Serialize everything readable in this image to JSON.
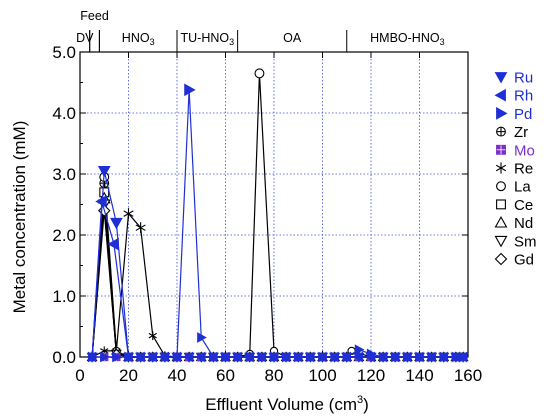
{
  "chart_data": {
    "type": "line",
    "xlabel": "Effluent Volume (cm",
    "xlabel_sup": "3",
    "xlabel_end": ")",
    "ylabel": "Metal concentration (mM)",
    "xlim": [
      0,
      160
    ],
    "ylim": [
      0,
      5.0
    ],
    "xticks": [
      0,
      20,
      40,
      60,
      80,
      100,
      120,
      140,
      160
    ],
    "yticks": [
      0.0,
      1.0,
      2.0,
      3.0,
      4.0,
      5.0
    ],
    "ytick_labels": [
      "0.0",
      "1.0",
      "2.0",
      "3.0",
      "4.0",
      "5.0"
    ],
    "grid": true,
    "legend_position": "right",
    "phases": [
      {
        "label": "DV",
        "start": 0,
        "end": 4
      },
      {
        "label": "Feed",
        "start": 4,
        "end": 8
      },
      {
        "label": "HNO",
        "sub": "3",
        "start": 8,
        "end": 40
      },
      {
        "label": "TU-HNO",
        "sub": "3",
        "start": 40,
        "end": 65
      },
      {
        "label": "OA",
        "start": 65,
        "end": 110
      },
      {
        "label": "HMBO-HNO",
        "sub": "3",
        "start": 110,
        "end": 160
      }
    ],
    "series": [
      {
        "name": "Ru",
        "color": "#1f2fd6",
        "marker": "triangle-down-filled",
        "x": [
          5,
          10,
          15,
          20,
          25,
          30,
          35,
          40,
          45,
          50,
          55,
          60,
          65,
          70,
          75,
          80,
          85,
          90,
          95,
          100,
          105,
          110,
          115,
          120,
          125,
          130,
          135,
          140,
          145,
          150,
          155,
          158
        ],
        "y": [
          0,
          3.05,
          2.2,
          0,
          0,
          0,
          0,
          0,
          0,
          0,
          0,
          0,
          0,
          0,
          0,
          0,
          0,
          0,
          0,
          0,
          0,
          0,
          0,
          0,
          0,
          0,
          0,
          0,
          0,
          0,
          0,
          0
        ]
      },
      {
        "name": "Rh",
        "color": "#1f2fd6",
        "marker": "triangle-left-filled",
        "x": [
          5,
          9,
          14,
          20,
          25,
          30,
          35,
          40,
          45,
          50,
          55,
          60,
          65,
          70,
          75,
          80,
          85,
          90,
          95,
          100,
          105,
          110,
          115,
          120,
          125,
          130,
          135,
          140,
          145,
          150,
          155,
          158
        ],
        "y": [
          0,
          2.55,
          1.85,
          0,
          0,
          0,
          0,
          0,
          0,
          0,
          0,
          0,
          0,
          0,
          0,
          0,
          0,
          0,
          0,
          0,
          0,
          0,
          0,
          0,
          0,
          0,
          0,
          0,
          0,
          0,
          0,
          0
        ]
      },
      {
        "name": "Pd",
        "color": "#1f2fd6",
        "marker": "triangle-right-filled",
        "x": [
          5,
          10,
          15,
          20,
          25,
          30,
          35,
          40,
          45,
          50,
          55,
          60,
          65,
          70,
          75,
          80,
          85,
          90,
          95,
          100,
          105,
          110,
          115,
          120,
          125,
          130,
          135,
          140,
          145,
          150,
          155,
          158
        ],
        "y": [
          0,
          0,
          0,
          0,
          0,
          0,
          0,
          0,
          4.38,
          0.32,
          0,
          0,
          0,
          0,
          0,
          0,
          0,
          0,
          0,
          0,
          0,
          0,
          0.12,
          0.05,
          0,
          0,
          0,
          0,
          0,
          0,
          0,
          0
        ]
      },
      {
        "name": "Zr",
        "color": "#000000",
        "marker": "circle-plus",
        "x": [
          5,
          10,
          15,
          20,
          25,
          30,
          35,
          40,
          45,
          50,
          55,
          60,
          65,
          70,
          75,
          80,
          85,
          90,
          95,
          100,
          105,
          110,
          115,
          120,
          125,
          130,
          135,
          140,
          145,
          150,
          155,
          158
        ],
        "y": [
          0,
          2.85,
          0.08,
          0,
          0,
          0,
          0,
          0,
          0,
          0,
          0,
          0,
          0,
          0,
          0,
          0,
          0,
          0,
          0,
          0,
          0,
          0,
          0,
          0,
          0,
          0,
          0,
          0,
          0,
          0,
          0,
          0
        ]
      },
      {
        "name": "Mo",
        "color": "#7a2fc8",
        "marker": "square-plus",
        "x": [
          5,
          10,
          15,
          20,
          25,
          30,
          35,
          40,
          45,
          50,
          55,
          60,
          65,
          70,
          75,
          80,
          85,
          90,
          95,
          100,
          105,
          110,
          115,
          120,
          125,
          130,
          135,
          140,
          145,
          150,
          155,
          158
        ],
        "y": [
          0,
          0,
          0,
          0,
          0,
          0,
          0,
          0,
          0,
          0,
          0,
          0,
          0,
          0,
          0,
          0,
          0,
          0,
          0,
          0,
          0,
          0,
          0,
          0,
          0,
          0,
          0,
          0,
          0,
          0,
          0,
          0
        ]
      },
      {
        "name": "Re",
        "color": "#000000",
        "marker": "asterisk",
        "x": [
          5,
          10,
          15,
          20,
          25,
          30,
          35,
          40,
          45,
          50,
          55,
          60,
          65,
          70,
          75,
          80,
          85,
          90,
          95,
          100,
          105,
          110,
          115,
          120,
          125,
          130,
          135,
          140,
          145,
          150,
          155,
          158
        ],
        "y": [
          0,
          0.1,
          0.1,
          2.35,
          2.12,
          0.35,
          0.02,
          0,
          0,
          0,
          0,
          0,
          0,
          0,
          0,
          0,
          0,
          0,
          0,
          0,
          0,
          0,
          0,
          0,
          0,
          0,
          0,
          0,
          0,
          0,
          0,
          0
        ]
      },
      {
        "name": "La",
        "color": "#000000",
        "marker": "circle",
        "x": [
          5,
          10,
          15,
          20,
          25,
          30,
          35,
          40,
          45,
          50,
          55,
          60,
          65,
          70,
          74,
          80,
          85,
          90,
          95,
          100,
          105,
          110,
          112,
          120,
          125,
          130,
          135,
          140,
          145,
          150,
          155,
          158
        ],
        "y": [
          0,
          2.95,
          0.1,
          0,
          0,
          0,
          0,
          0,
          0,
          0,
          0,
          0,
          0,
          0.05,
          4.65,
          0.1,
          0,
          0,
          0,
          0,
          0,
          0,
          0.1,
          0,
          0,
          0,
          0,
          0,
          0,
          0,
          0,
          0
        ]
      },
      {
        "name": "Ce",
        "color": "#000000",
        "marker": "square",
        "x": [
          5,
          10,
          15,
          20,
          25,
          30,
          35,
          40,
          45,
          50,
          55,
          60,
          65,
          70,
          75,
          80,
          85,
          90,
          95,
          100,
          105,
          110,
          115,
          120,
          125,
          130,
          135,
          140,
          145,
          150,
          155,
          158
        ],
        "y": [
          0,
          2.7,
          0.05,
          0,
          0,
          0,
          0,
          0,
          0,
          0,
          0,
          0,
          0,
          0,
          0,
          0,
          0,
          0,
          0,
          0,
          0,
          0,
          0,
          0,
          0,
          0,
          0,
          0,
          0,
          0,
          0,
          0
        ]
      },
      {
        "name": "Nd",
        "color": "#000000",
        "marker": "triangle-up",
        "x": [
          5,
          10,
          15,
          20,
          25,
          30,
          35,
          40,
          45,
          50,
          55,
          60,
          65,
          70,
          75,
          80,
          85,
          90,
          95,
          100,
          105,
          110,
          115,
          120,
          125,
          130,
          135,
          140,
          145,
          150,
          155,
          158
        ],
        "y": [
          0,
          2.6,
          0.05,
          0,
          0,
          0,
          0,
          0,
          0,
          0,
          0,
          0,
          0,
          0,
          0,
          0,
          0,
          0,
          0,
          0,
          0,
          0,
          0,
          0,
          0,
          0,
          0,
          0,
          0,
          0,
          0,
          0
        ]
      },
      {
        "name": "Sm",
        "color": "#000000",
        "marker": "triangle-down",
        "x": [
          5,
          10,
          15,
          20,
          25,
          30,
          35,
          40,
          45,
          50,
          55,
          60,
          65,
          70,
          75,
          80,
          85,
          90,
          95,
          100,
          105,
          110,
          115,
          120,
          125,
          130,
          135,
          140,
          145,
          150,
          155,
          158
        ],
        "y": [
          0,
          2.5,
          0.05,
          0,
          0,
          0,
          0,
          0,
          0,
          0,
          0,
          0,
          0,
          0,
          0,
          0,
          0,
          0,
          0,
          0,
          0,
          0,
          0,
          0,
          0,
          0,
          0,
          0,
          0,
          0,
          0,
          0
        ]
      },
      {
        "name": "Gd",
        "color": "#000000",
        "marker": "diamond",
        "x": [
          5,
          10,
          15,
          20,
          25,
          30,
          35,
          40,
          45,
          50,
          55,
          60,
          65,
          70,
          75,
          80,
          85,
          90,
          95,
          100,
          105,
          110,
          115,
          120,
          125,
          130,
          135,
          140,
          145,
          150,
          155,
          158
        ],
        "y": [
          0,
          2.4,
          0.05,
          0,
          0,
          0,
          0,
          0,
          0,
          0,
          0,
          0,
          0,
          0,
          0,
          0,
          0,
          0,
          0,
          0,
          0,
          0,
          0,
          0,
          0,
          0,
          0,
          0,
          0,
          0,
          0,
          0
        ]
      }
    ]
  }
}
